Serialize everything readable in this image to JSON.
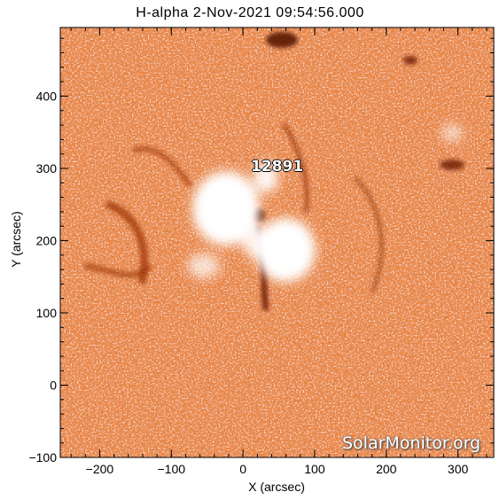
{
  "title": "H-alpha   2-Nov-2021  09:54:56.000",
  "xlabel": "X (arcsec)",
  "ylabel": "Y (arcsec)",
  "region_label": "12891",
  "watermark": "SolarMonitor.org",
  "colors": {
    "background": "#f6a066",
    "bright": "#ffffff",
    "dark": "#7a1e00",
    "mid": "#d35a14"
  },
  "chart_data": {
    "type": "heatmap",
    "xlim": [
      -255,
      350
    ],
    "ylim": [
      -100,
      495
    ],
    "x_ticks": [
      -200,
      -100,
      0,
      100,
      200,
      300
    ],
    "y_ticks": [
      -100,
      0,
      100,
      200,
      300,
      400
    ],
    "x_tick_labels": [
      "−200",
      "−100",
      "0",
      "100",
      "200",
      "300"
    ],
    "y_tick_labels": [
      "−100",
      "0",
      "100",
      "200",
      "300",
      "400"
    ]
  }
}
